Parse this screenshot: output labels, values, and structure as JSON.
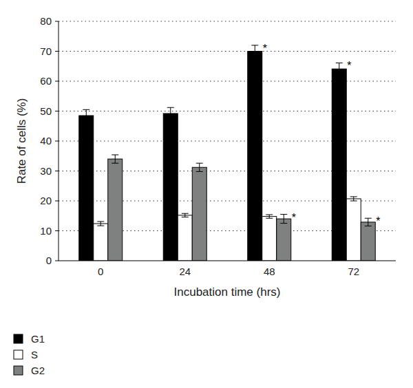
{
  "chart_data": {
    "type": "bar",
    "x_label": "Incubation time (hrs)",
    "y_label": "Rate of cells (%)",
    "categories": [
      "0",
      "24",
      "48",
      "72"
    ],
    "series": [
      {
        "name": "G1",
        "color": "#000000",
        "values": [
          48.5,
          49.2,
          70.0,
          64.1
        ],
        "errors": [
          2.0,
          2.0,
          2.0,
          2.0
        ],
        "annotations": [
          null,
          null,
          "*",
          "*"
        ]
      },
      {
        "name": "S",
        "color": "#ffffff",
        "values": [
          12.4,
          15.2,
          14.8,
          20.7
        ],
        "errors": [
          0.7,
          0.6,
          0.6,
          0.7
        ],
        "annotations": [
          null,
          null,
          null,
          null
        ]
      },
      {
        "name": "G2",
        "color": "#7f8080",
        "values": [
          34.0,
          31.2,
          14.0,
          12.9
        ],
        "errors": [
          1.4,
          1.4,
          1.5,
          1.3
        ],
        "annotations": [
          null,
          null,
          "*",
          "*"
        ]
      }
    ],
    "ylim": [
      0,
      80
    ],
    "yticks": [
      0,
      10,
      20,
      30,
      40,
      50,
      60,
      70,
      80
    ],
    "grid": true,
    "legend": "bottom-left"
  }
}
